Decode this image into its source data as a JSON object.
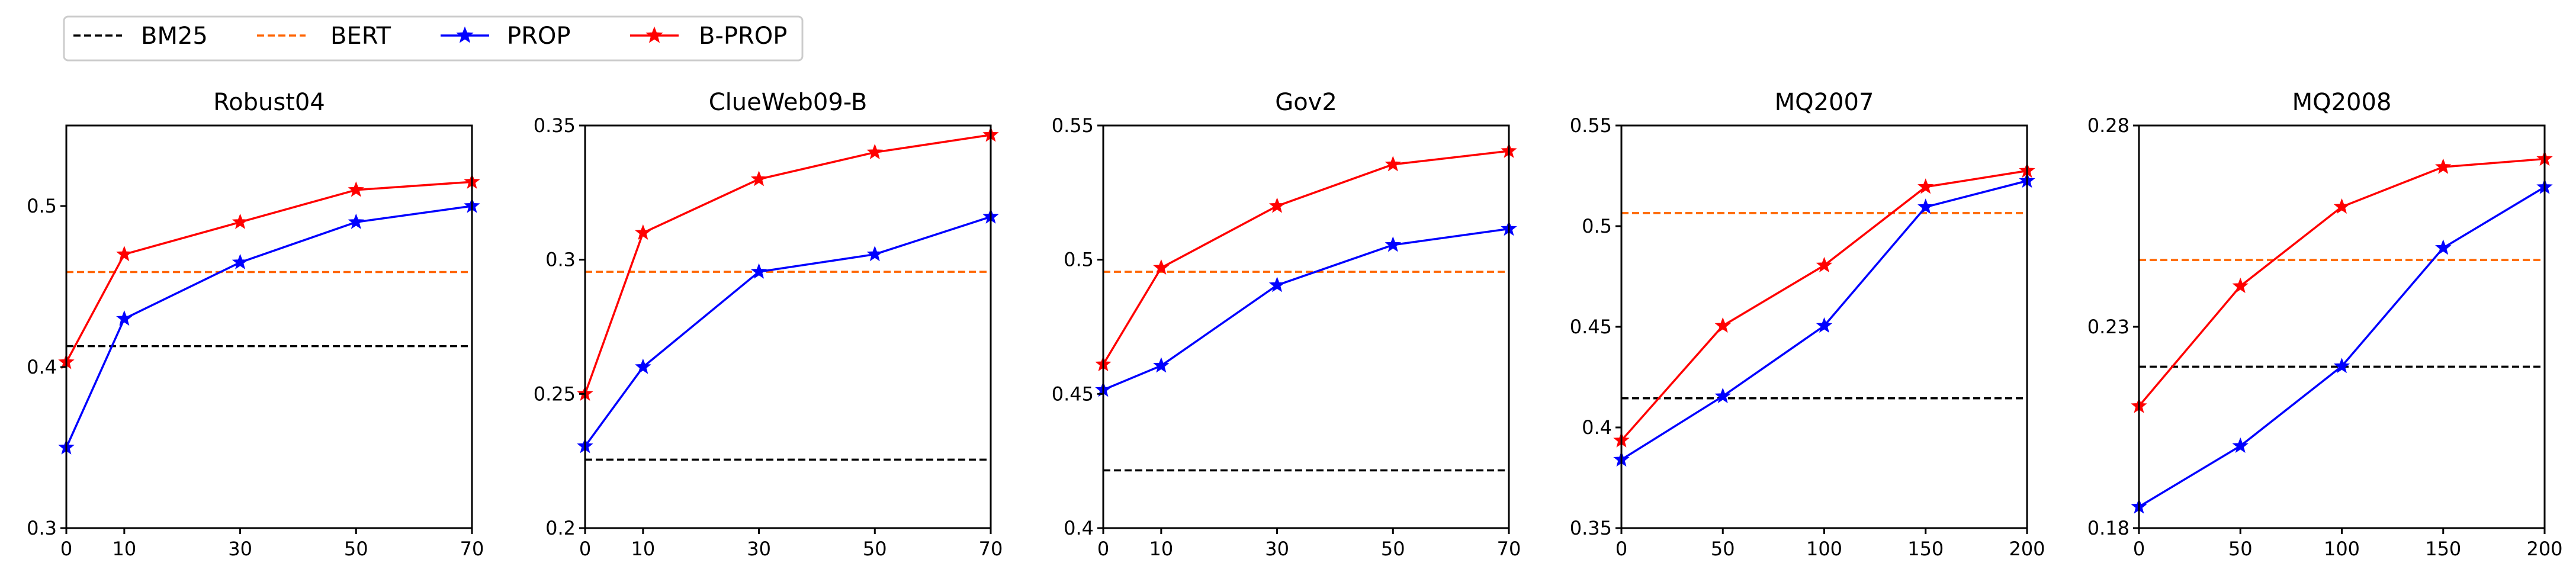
{
  "legend": {
    "items": [
      {
        "label": "BM25",
        "color": "#000000",
        "style": "dashed",
        "marker": "none"
      },
      {
        "label": "BERT",
        "color": "#ff6600",
        "style": "dashed",
        "marker": "none"
      },
      {
        "label": "PROP",
        "color": "#0000ff",
        "style": "solid",
        "marker": "star"
      },
      {
        "label": "B-PROP",
        "color": "#ff0000",
        "style": "solid",
        "marker": "star"
      }
    ],
    "placement": "top-left, above panels"
  },
  "chart_data": [
    {
      "type": "line",
      "title": "Robust04",
      "xlabel": "",
      "ylabel": "",
      "xlim": [
        0,
        70
      ],
      "ylim": [
        0.3,
        0.55
      ],
      "xticks": [
        0,
        10,
        30,
        50,
        70
      ],
      "yticks": [
        {
          "v": 0.3,
          "label": "0.3"
        },
        {
          "v": 0.4,
          "label": "0.4"
        },
        {
          "v": 0.5,
          "label": "0.5"
        }
      ],
      "grid": false,
      "baselines": [
        {
          "name": "BM25",
          "value": 0.413
        },
        {
          "name": "BERT",
          "value": 0.459
        }
      ],
      "series": [
        {
          "name": "PROP",
          "x": [
            0,
            10,
            30,
            50,
            70
          ],
          "y": [
            0.35,
            0.43,
            0.465,
            0.49,
            0.5
          ]
        },
        {
          "name": "B-PROP",
          "x": [
            0,
            10,
            30,
            50,
            70
          ],
          "y": [
            0.403,
            0.47,
            0.49,
            0.51,
            0.515
          ]
        }
      ]
    },
    {
      "type": "line",
      "title": "ClueWeb09-B",
      "xlabel": "",
      "ylabel": "",
      "xlim": [
        0,
        70
      ],
      "ylim": [
        0.2,
        0.35
      ],
      "xticks": [
        0,
        10,
        30,
        50,
        70
      ],
      "yticks": [
        {
          "v": 0.2,
          "label": "0.2"
        },
        {
          "v": 0.25,
          "label": "0.25"
        },
        {
          "v": 0.3,
          "label": "0.3"
        },
        {
          "v": 0.35,
          "label": "0.35"
        }
      ],
      "grid": false,
      "baselines": [
        {
          "name": "BM25",
          "value": 0.2255
        },
        {
          "name": "BERT",
          "value": 0.2955
        }
      ],
      "series": [
        {
          "name": "PROP",
          "x": [
            0,
            10,
            30,
            50,
            70
          ],
          "y": [
            0.2305,
            0.26,
            0.2955,
            0.302,
            0.316
          ]
        },
        {
          "name": "B-PROP",
          "x": [
            0,
            10,
            30,
            50,
            70
          ],
          "y": [
            0.25,
            0.31,
            0.33,
            0.34,
            0.3465
          ]
        }
      ]
    },
    {
      "type": "line",
      "title": "Gov2",
      "xlabel": "",
      "ylabel": "",
      "xlim": [
        0,
        70
      ],
      "ylim": [
        0.4,
        0.55
      ],
      "xticks": [
        0,
        10,
        30,
        50,
        70
      ],
      "yticks": [
        {
          "v": 0.4,
          "label": "0.4"
        },
        {
          "v": 0.45,
          "label": "0.45"
        },
        {
          "v": 0.5,
          "label": "0.5"
        },
        {
          "v": 0.55,
          "label": "0.55"
        }
      ],
      "grid": false,
      "baselines": [
        {
          "name": "BM25",
          "value": 0.4215
        },
        {
          "name": "BERT",
          "value": 0.4955
        }
      ],
      "series": [
        {
          "name": "PROP",
          "x": [
            0,
            10,
            30,
            50,
            70
          ],
          "y": [
            0.4515,
            0.4605,
            0.4905,
            0.5055,
            0.5115
          ]
        },
        {
          "name": "B-PROP",
          "x": [
            0,
            10,
            30,
            50,
            70
          ],
          "y": [
            0.461,
            0.497,
            0.52,
            0.5355,
            0.5405
          ]
        }
      ]
    },
    {
      "type": "line",
      "title": "MQ2007",
      "xlabel": "",
      "ylabel": "",
      "xlim": [
        0,
        200
      ],
      "ylim": [
        0.35,
        0.55
      ],
      "xticks": [
        0,
        50,
        100,
        150,
        200
      ],
      "yticks": [
        {
          "v": 0.35,
          "label": "0.35"
        },
        {
          "v": 0.4,
          "label": "0.4"
        },
        {
          "v": 0.45,
          "label": "0.45"
        },
        {
          "v": 0.5,
          "label": "0.5"
        },
        {
          "v": 0.55,
          "label": "0.55"
        }
      ],
      "grid": false,
      "baselines": [
        {
          "name": "BM25",
          "value": 0.4145
        },
        {
          "name": "BERT",
          "value": 0.5065
        }
      ],
      "series": [
        {
          "name": "PROP",
          "x": [
            0,
            50,
            100,
            150,
            200
          ],
          "y": [
            0.384,
            0.4155,
            0.4505,
            0.5095,
            0.5225
          ]
        },
        {
          "name": "B-PROP",
          "x": [
            0,
            50,
            100,
            150,
            200
          ],
          "y": [
            0.3935,
            0.4505,
            0.4805,
            0.5195,
            0.5275
          ]
        }
      ]
    },
    {
      "type": "line",
      "title": "MQ2008",
      "xlabel": "",
      "ylabel": "",
      "xlim": [
        0,
        200
      ],
      "ylim": [
        0.18,
        0.28
      ],
      "xticks": [
        0,
        50,
        100,
        150,
        200
      ],
      "yticks": [
        {
          "v": 0.18,
          "label": "0.18"
        },
        {
          "v": 0.23,
          "label": "0.23"
        },
        {
          "v": 0.28,
          "label": "0.28"
        }
      ],
      "grid": false,
      "baselines": [
        {
          "name": "BM25",
          "value": 0.2201
        },
        {
          "name": "BERT",
          "value": 0.2466
        }
      ],
      "series": [
        {
          "name": "PROP",
          "x": [
            0,
            50,
            100,
            150,
            200
          ],
          "y": [
            0.1853,
            0.2004,
            0.2202,
            0.2496,
            0.2647
          ]
        },
        {
          "name": "B-PROP",
          "x": [
            0,
            50,
            100,
            150,
            200
          ],
          "y": [
            0.2103,
            0.2401,
            0.2598,
            0.2697,
            0.2717
          ]
        }
      ]
    }
  ]
}
